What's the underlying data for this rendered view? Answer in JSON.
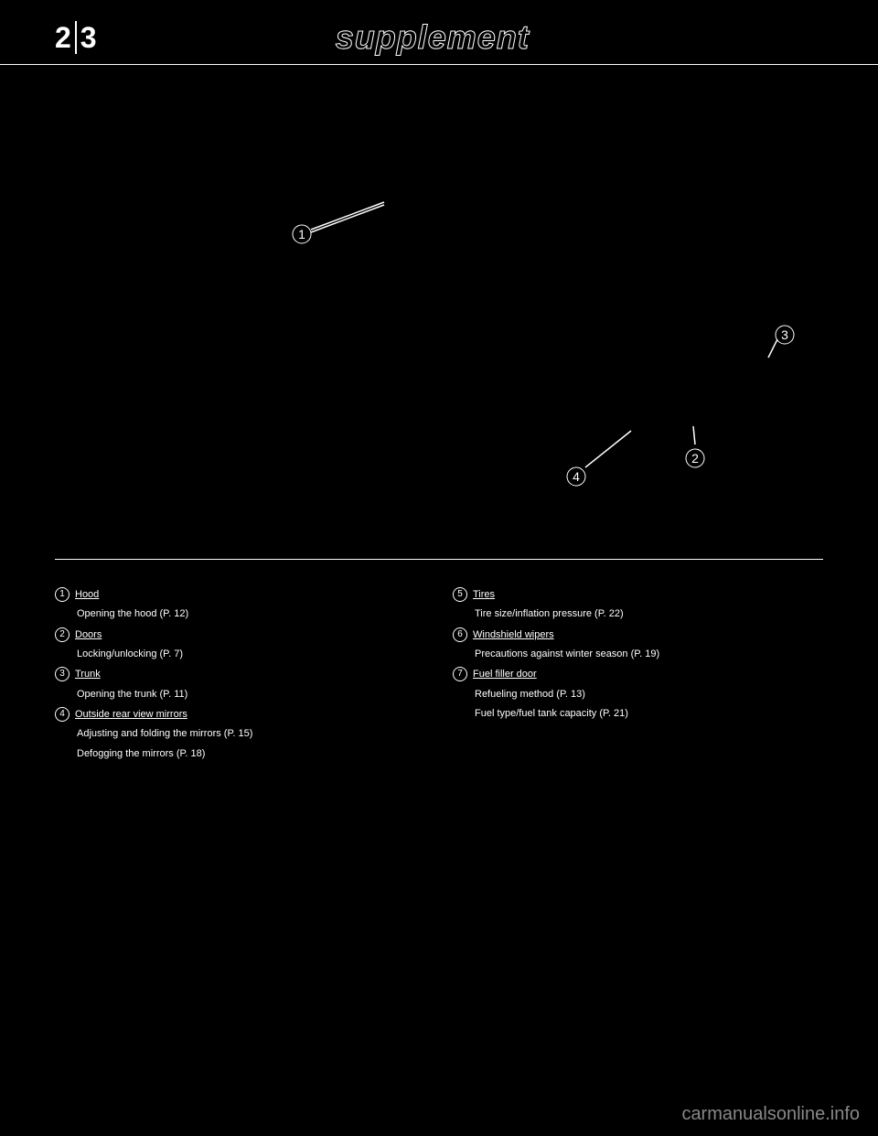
{
  "header": {
    "page_left": "2",
    "page_right": "3",
    "title": "supplement"
  },
  "diagram": {
    "label_1": "1",
    "label_2": "2",
    "label_3": "3",
    "label_4": "4"
  },
  "legend_left": [
    {
      "num": "1",
      "text": "Hood"
    },
    {
      "num": "",
      "text": "Opening the hood (P. 12)"
    },
    {
      "num": "2",
      "text": "Doors"
    },
    {
      "num": "",
      "text": "Locking/unlocking (P. 7)"
    },
    {
      "num": "3",
      "text": "Trunk"
    },
    {
      "num": "",
      "text": "Opening the trunk (P. 11)"
    },
    {
      "num": "4",
      "text": "Outside rear view mirrors"
    },
    {
      "num": "",
      "text": "Adjusting and folding the mirrors (P. 15)"
    },
    {
      "num": "",
      "text": "Defogging the mirrors (P. 18)"
    }
  ],
  "legend_right": [
    {
      "num": "5",
      "text": "Tires"
    },
    {
      "num": "",
      "text": "Tire size/inflation pressure (P. 22)"
    },
    {
      "num": "6",
      "text": "Windshield wipers"
    },
    {
      "num": "",
      "text": "Precautions against winter season (P. 19)"
    },
    {
      "num": "7",
      "text": "Fuel filler door"
    },
    {
      "num": "",
      "text": "Refueling method (P. 13)"
    },
    {
      "num": "",
      "text": "Fuel type/fuel tank capacity (P. 21)"
    }
  ],
  "watermark": "carmanualsonline.info",
  "colors": {
    "background": "#000000",
    "foreground": "#ffffff",
    "watermark": "#888888"
  }
}
